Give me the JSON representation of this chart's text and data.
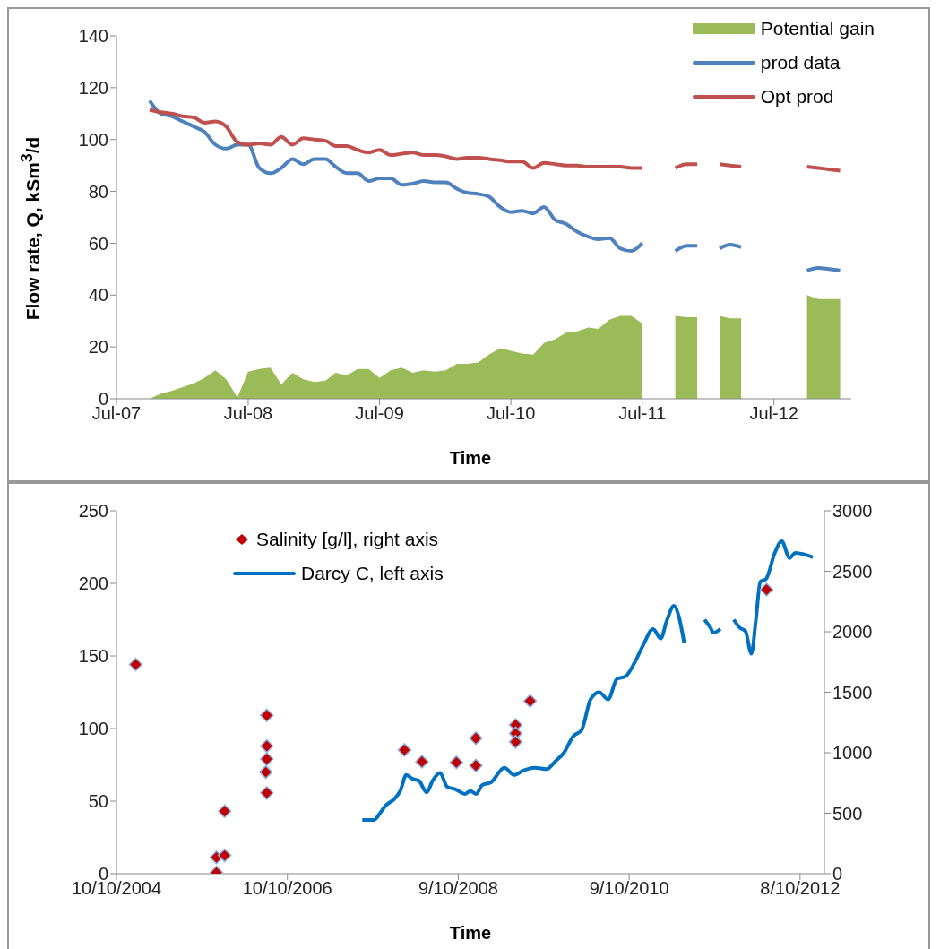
{
  "chart_data": [
    {
      "type": "line",
      "xlabel": "Time",
      "ylabel": "Flow rate, Q, kSm$^{3}$/d",
      "xlim": [
        "2007-07",
        "2013-02"
      ],
      "xticks": [
        {
          "value": "2007-07",
          "label": "Jul-07"
        },
        {
          "value": "2008-07",
          "label": "Jul-08"
        },
        {
          "value": "2009-07",
          "label": "Jul-09"
        },
        {
          "value": "2010-07",
          "label": "Jul-10"
        },
        {
          "value": "2011-07",
          "label": "Jul-11"
        },
        {
          "value": "2012-07",
          "label": "Jul-12"
        }
      ],
      "ylim": [
        0,
        140
      ],
      "yticks": [
        0,
        20,
        40,
        60,
        80,
        100,
        120,
        140
      ],
      "legend": "top right",
      "line_style": "solid",
      "x": [
        "2007-10",
        "2007-11",
        "2007-12",
        "2008-01",
        "2008-02",
        "2008-03",
        "2008-04",
        "2008-05",
        "2008-06",
        "2008-07",
        "2008-08",
        "2008-09",
        "2008-10",
        "2008-11",
        "2008-12",
        "2009-01",
        "2009-02",
        "2009-03",
        "2009-04",
        "2009-05",
        "2009-06",
        "2009-07",
        "2009-08",
        "2009-09",
        "2009-10",
        "2009-11",
        "2009-12",
        "2010-01",
        "2010-02",
        "2010-03",
        "2010-04",
        "2010-05",
        "2010-06",
        "2010-07",
        "2010-08",
        "2010-09",
        "2010-10",
        "2010-11",
        "2010-12",
        "2011-01",
        "2011-02",
        "2011-03",
        "2011-04",
        "2011-05",
        "2011-06",
        "2011-07",
        "2011-08",
        "2011-09",
        "2011-10",
        "2011-11",
        "2011-12",
        "2012-01",
        "2012-02",
        "2012-03",
        "2012-04",
        "2012-05",
        "2012-06",
        "2012-07",
        "2012-08",
        "2012-09",
        "2012-10",
        "2012-11",
        "2012-12",
        "2013-01"
      ],
      "series": [
        {
          "name": "Potential gain",
          "type": "area",
          "color": "#9bbb59",
          "values": [
            0,
            2,
            3,
            4.5,
            6,
            8,
            11,
            7.5,
            0.5,
            10.5,
            11.5,
            12,
            5.5,
            10,
            7.5,
            6.5,
            7,
            10,
            9,
            11.5,
            11.5,
            8,
            11,
            12,
            10,
            11,
            10.5,
            11,
            13.5,
            13.5,
            14,
            17,
            19.5,
            18.5,
            17.5,
            17,
            21.5,
            23,
            25.5,
            26,
            27.5,
            27,
            30.5,
            32,
            32,
            29,
            null,
            null,
            32,
            31.5,
            31.5,
            null,
            32,
            31,
            31,
            null,
            null,
            null,
            null,
            null,
            40,
            38.5,
            38.5,
            38.5
          ]
        },
        {
          "name": "prod data",
          "color": "#4f81bd",
          "values": [
            115,
            110,
            109,
            107,
            105,
            103,
            98,
            96.5,
            98,
            98,
            89,
            87,
            89,
            92.5,
            90.5,
            92.5,
            92.5,
            89.5,
            87,
            87,
            84,
            85,
            85,
            82.5,
            83,
            84,
            83.5,
            83.5,
            81,
            79.5,
            79,
            78,
            74,
            72,
            72.5,
            71.5,
            74,
            69,
            67.5,
            64.5,
            62.5,
            61.5,
            62,
            58,
            57,
            60,
            null,
            null,
            57,
            59,
            59,
            null,
            58,
            59.5,
            58.5,
            null,
            null,
            null,
            null,
            null,
            49.5,
            50.5,
            50,
            49.5
          ]
        },
        {
          "name": "Opt prod",
          "color": "#c0504d",
          "values": [
            111.5,
            110.5,
            110,
            109,
            108.5,
            106.5,
            107,
            105,
            99,
            98,
            98.5,
            98,
            101,
            98,
            100.5,
            100,
            99.5,
            97.5,
            97.5,
            96,
            95,
            96,
            94,
            94.5,
            95,
            94,
            94,
            93.5,
            92.5,
            93,
            93,
            92.5,
            92,
            91.5,
            91.5,
            89,
            91,
            90.5,
            90,
            90,
            89.5,
            89.5,
            89.5,
            89.5,
            89,
            89,
            null,
            null,
            89,
            90.5,
            90.5,
            null,
            90.5,
            90,
            89.5,
            null,
            null,
            null,
            null,
            null,
            89.5,
            89,
            88.5,
            88
          ]
        }
      ]
    },
    {
      "type": "line",
      "xlabel": "Time",
      "xlim": [
        "2004-10-10",
        "2013-01-20"
      ],
      "xticks": [
        {
          "value": "2004-10-10",
          "label": "10/10/2004"
        },
        {
          "value": "2006-10-10",
          "label": "10/10/2006"
        },
        {
          "value": "2008-10-09",
          "label": "9/10/2008"
        },
        {
          "value": "2010-10-09",
          "label": "9/10/2010"
        },
        {
          "value": "2012-10-08",
          "label": "8/10/2012"
        }
      ],
      "ylim": [
        0,
        250
      ],
      "yticks": [
        0,
        50,
        100,
        150,
        200,
        250
      ],
      "y2lim": [
        0,
        3000
      ],
      "y2ticks": [
        0,
        500,
        1000,
        1500,
        2000,
        2500,
        3000
      ],
      "legend": "top left",
      "line_style": "solid",
      "series": [
        {
          "name": "Salinity [g/l], right axis",
          "type": "scatter",
          "axis": "y2",
          "marker": "diamond",
          "color": "#c00000",
          "x": [
            "2004-12-31",
            "2005-12-11",
            "2005-12-11",
            "2006-01-15",
            "2006-01-15",
            "2006-07-14",
            "2006-07-14",
            "2006-07-14",
            "2006-07-10",
            "2006-07-14",
            "2008-02-22",
            "2008-05-07",
            "2008-10-01",
            "2008-12-23",
            "2008-12-23",
            "2009-06-11",
            "2009-06-11",
            "2009-06-11",
            "2009-08-12",
            "2012-05-18"
          ],
          "values": [
            1730,
            10,
            135,
            517,
            151,
            1309,
            1056,
            948,
            840,
            668,
            1023,
            926,
            921,
            1120,
            894,
            1230,
            1160,
            1090,
            1428,
            2348
          ]
        },
        {
          "name": "Darcy C, left axis",
          "color": "#0070c0",
          "x": [
            "2007-08-26",
            "2007-10-15",
            "2007-11-09",
            "2007-12-04",
            "2008-01-10",
            "2008-02-04",
            "2008-03-01",
            "2008-03-25",
            "2008-04-24",
            "2008-05-27",
            "2008-06-21",
            "2008-07-23",
            "2008-08-22",
            "2008-09-29",
            "2008-11-05",
            "2008-11-30",
            "2008-12-25",
            "2009-01-19",
            "2009-02-26",
            "2009-04-24",
            "2009-06-06",
            "2009-07-13",
            "2009-09-01",
            "2009-10-21",
            "2009-11-28",
            "2010-01-04",
            "2010-02-11",
            "2010-03-20",
            "2010-04-27",
            "2010-06-03",
            "2010-07-11",
            "2010-08-17",
            "2010-09-24",
            "2010-10-31",
            "2010-12-08",
            "2011-01-19",
            "2011-02-21",
            "2011-03-18",
            "2011-04-19",
            "2011-05-07",
            "2011-06-01",
            "2011-07-15",
            "2011-08-27",
            "2011-09-21",
            "2011-10-04",
            "2011-11-03",
            "2011-11-20",
            "2011-12-30",
            "2012-01-24",
            "2012-02-18",
            "2012-03-14",
            "2012-04-03",
            "2012-04-21",
            "2012-05-16",
            "2012-06-22",
            "2012-07-22",
            "2012-08-24",
            "2012-09-18",
            "2012-10-25",
            "2012-12-02"
          ],
          "values": [
            37,
            37,
            41.5,
            47,
            51.5,
            57,
            68,
            65.5,
            64,
            56,
            64,
            69.5,
            60,
            58,
            55,
            57,
            55,
            61,
            63,
            73,
            68,
            71,
            73,
            72,
            77.5,
            83.5,
            94.5,
            99,
            120,
            125,
            120,
            134,
            136,
            145,
            157.5,
            168.5,
            162,
            174,
            184.5,
            178.5,
            159,
            null,
            175,
            169.5,
            166,
            168.5,
            null,
            175,
            169.5,
            167,
            151.5,
            176,
            201,
            203,
            221,
            229,
            217.5,
            221,
            220,
            218
          ]
        }
      ]
    }
  ]
}
